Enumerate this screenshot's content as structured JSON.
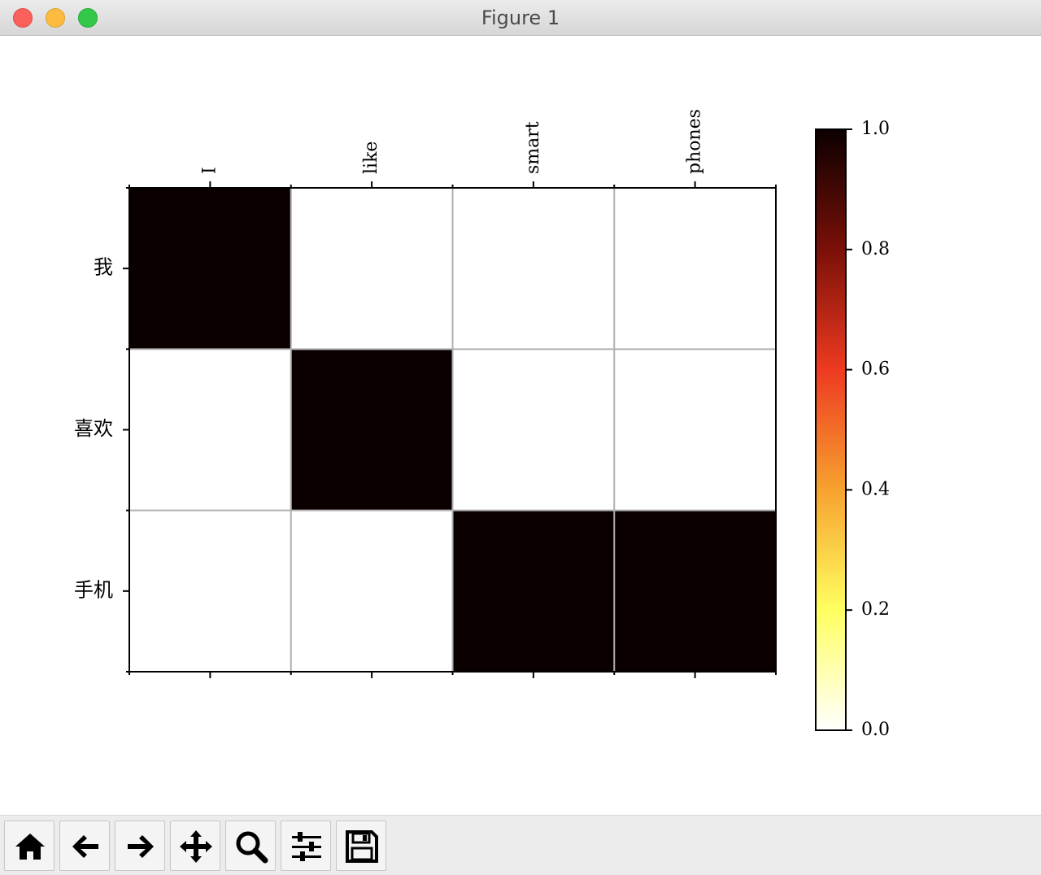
{
  "window": {
    "title": "Figure 1"
  },
  "toolbar": {
    "buttons": [
      {
        "name": "home",
        "icon": "home-icon"
      },
      {
        "name": "back",
        "icon": "arrow-left-icon"
      },
      {
        "name": "forward",
        "icon": "arrow-right-icon"
      },
      {
        "name": "pan",
        "icon": "move-icon"
      },
      {
        "name": "zoom",
        "icon": "magnifier-icon"
      },
      {
        "name": "configure-subplots",
        "icon": "sliders-icon"
      },
      {
        "name": "save",
        "icon": "floppy-disk-icon"
      }
    ]
  },
  "chart_data": {
    "type": "heatmap",
    "title": "",
    "x_categories": [
      "I",
      "like",
      "smart",
      "phones"
    ],
    "y_categories": [
      "我",
      "喜欢",
      "手机"
    ],
    "values": [
      [
        1,
        0,
        0,
        0
      ],
      [
        0,
        1,
        0,
        0
      ],
      [
        0,
        0,
        1,
        1
      ]
    ],
    "colormap": "hot_r",
    "colorbar": {
      "range": [
        0.0,
        1.0
      ],
      "ticks": [
        0.0,
        0.2,
        0.4,
        0.6,
        0.8,
        1.0
      ],
      "tick_labels": [
        "0.0",
        "0.2",
        "0.4",
        "0.6",
        "0.8",
        "1.0"
      ],
      "colors": [
        "#ffffff",
        "#ffff60",
        "#f7a22f",
        "#ee3a21",
        "#7a1008",
        "#0b0000"
      ]
    },
    "grid": true,
    "x_ticks_position": "top",
    "x_tick_rotation": 90
  }
}
